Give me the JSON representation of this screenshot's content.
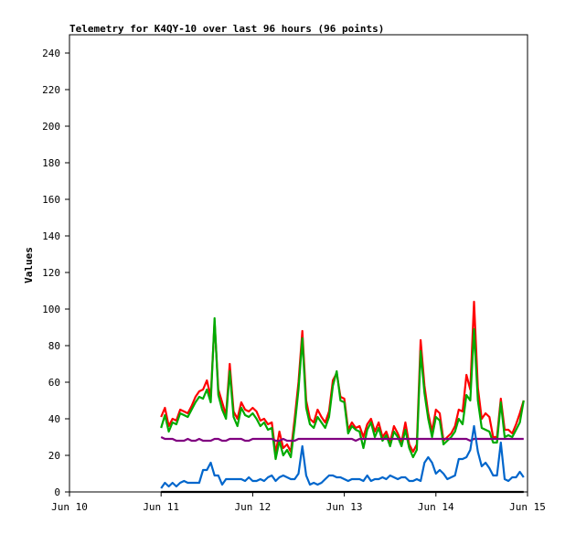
{
  "chart_data": {
    "type": "line",
    "title": "Telemetry for K4QY-10 over last 96 hours (96 points)",
    "xlabel": "",
    "ylabel": "Values",
    "xlim": [
      0,
      120
    ],
    "ylim": [
      0,
      250
    ],
    "x_ticks": [
      {
        "value": 0,
        "label": "Jun 10"
      },
      {
        "value": 24,
        "label": "Jun 11"
      },
      {
        "value": 48,
        "label": "Jun 12"
      },
      {
        "value": 72,
        "label": "Jun 13"
      },
      {
        "value": 96,
        "label": "Jun 14"
      },
      {
        "value": 120,
        "label": "Jun 15"
      }
    ],
    "y_ticks": [
      0,
      20,
      40,
      60,
      80,
      100,
      120,
      140,
      160,
      180,
      200,
      220,
      240
    ],
    "grid": false,
    "legend": "none",
    "x": [
      0,
      1,
      2,
      3,
      4,
      5,
      6,
      7,
      8,
      9,
      10,
      11,
      12,
      13,
      14,
      15,
      16,
      17,
      18,
      19,
      20,
      21,
      22,
      23,
      24,
      25,
      26,
      27,
      28,
      29,
      30,
      31,
      32,
      33,
      34,
      35,
      36,
      37,
      38,
      39,
      40,
      41,
      42,
      43,
      44,
      45,
      46,
      47,
      48,
      49,
      50,
      51,
      52,
      53,
      54,
      55,
      56,
      57,
      58,
      59,
      60,
      61,
      62,
      63,
      64,
      65,
      66,
      67,
      68,
      69,
      70,
      71,
      72,
      73,
      74,
      75,
      76,
      77,
      78,
      79,
      80,
      81,
      82,
      83,
      84,
      85,
      86,
      87,
      88,
      89,
      90,
      91,
      92,
      93,
      94,
      95
    ],
    "x_offset": 24,
    "series": [
      {
        "color": "#ff0000",
        "values": [
          41,
          46,
          36,
          40,
          39,
          45,
          44,
          43,
          47,
          52,
          55,
          56,
          61,
          52,
          93,
          56,
          49,
          42,
          70,
          44,
          40,
          49,
          45,
          44,
          46,
          44,
          39,
          40,
          37,
          38,
          21,
          33,
          24,
          26,
          22,
          40,
          60,
          88,
          50,
          40,
          38,
          45,
          41,
          38,
          44,
          61,
          65,
          52,
          51,
          34,
          38,
          35,
          36,
          30,
          37,
          40,
          33,
          38,
          30,
          33,
          27,
          36,
          32,
          27,
          38,
          26,
          22,
          26,
          83,
          58,
          43,
          33,
          45,
          43,
          28,
          30,
          32,
          36,
          45,
          44,
          64,
          56,
          104,
          57,
          40,
          43,
          41,
          30,
          30,
          51,
          34,
          34,
          32,
          37,
          43,
          50
        ]
      },
      {
        "color": "#00aa00",
        "values": [
          35,
          42,
          33,
          38,
          37,
          43,
          42,
          41,
          45,
          49,
          52,
          51,
          56,
          49,
          95,
          53,
          45,
          40,
          66,
          41,
          36,
          46,
          42,
          41,
          43,
          40,
          36,
          38,
          34,
          35,
          18,
          28,
          20,
          23,
          19,
          36,
          56,
          84,
          46,
          37,
          35,
          41,
          38,
          35,
          41,
          58,
          66,
          50,
          49,
          32,
          36,
          34,
          33,
          24,
          34,
          38,
          30,
          35,
          28,
          31,
          25,
          33,
          30,
          25,
          34,
          24,
          19,
          23,
          77,
          54,
          40,
          30,
          41,
          39,
          26,
          28,
          30,
          33,
          40,
          37,
          53,
          50,
          89,
          50,
          35,
          34,
          33,
          27,
          27,
          49,
          30,
          31,
          30,
          34,
          38,
          50
        ]
      },
      {
        "color": "#800080",
        "values": [
          30,
          29,
          29,
          29,
          28,
          28,
          28,
          29,
          28,
          28,
          29,
          28,
          28,
          28,
          29,
          29,
          28,
          28,
          29,
          29,
          29,
          29,
          28,
          28,
          29,
          29,
          29,
          29,
          29,
          29,
          28,
          28,
          29,
          28,
          28,
          28,
          29,
          29,
          29,
          29,
          29,
          29,
          29,
          29,
          29,
          29,
          29,
          29,
          29,
          29,
          29,
          28,
          29,
          29,
          29,
          29,
          29,
          29,
          29,
          29,
          29,
          29,
          29,
          29,
          29,
          29,
          29,
          29,
          29,
          29,
          29,
          29,
          29,
          29,
          29,
          29,
          29,
          29,
          29,
          29,
          29,
          28,
          29,
          29,
          29,
          29,
          29,
          29,
          29,
          29,
          29,
          29,
          29,
          29,
          29,
          29
        ]
      },
      {
        "color": "#0066cc",
        "values": [
          2,
          5,
          3,
          5,
          3,
          5,
          6,
          5,
          5,
          5,
          5,
          12,
          12,
          16,
          9,
          9,
          4,
          7,
          7,
          7,
          7,
          7,
          6,
          8,
          6,
          6,
          7,
          6,
          8,
          9,
          6,
          8,
          9,
          8,
          7,
          7,
          10,
          25,
          9,
          4,
          5,
          4,
          5,
          7,
          9,
          9,
          8,
          8,
          7,
          6,
          7,
          7,
          7,
          6,
          9,
          6,
          7,
          7,
          8,
          7,
          9,
          8,
          7,
          8,
          8,
          6,
          6,
          7,
          6,
          16,
          19,
          16,
          10,
          12,
          10,
          7,
          8,
          9,
          18,
          18,
          19,
          23,
          36,
          22,
          14,
          16,
          13,
          9,
          9,
          27,
          7,
          6,
          8,
          8,
          11,
          8
        ]
      },
      {
        "color": "#000000",
        "values": [
          0,
          0,
          0,
          0,
          0,
          0,
          0,
          0,
          0,
          0,
          0,
          0,
          0,
          0,
          0,
          0,
          0,
          0,
          0,
          0,
          0,
          0,
          0,
          0,
          0,
          0,
          0,
          0,
          0,
          0,
          0,
          0,
          0,
          0,
          0,
          0,
          0,
          0,
          0,
          0,
          0,
          0,
          0,
          0,
          0,
          0,
          0,
          0,
          0,
          0,
          0,
          0,
          0,
          0,
          0,
          0,
          0,
          0,
          0,
          0,
          0,
          0,
          0,
          0,
          0,
          0,
          0,
          0,
          0,
          0,
          0,
          0,
          0,
          0,
          0,
          0,
          0,
          0,
          0,
          0,
          0,
          0,
          0,
          0,
          0,
          0,
          0,
          0,
          0,
          0,
          0,
          0,
          0,
          0,
          0,
          0
        ]
      }
    ]
  }
}
